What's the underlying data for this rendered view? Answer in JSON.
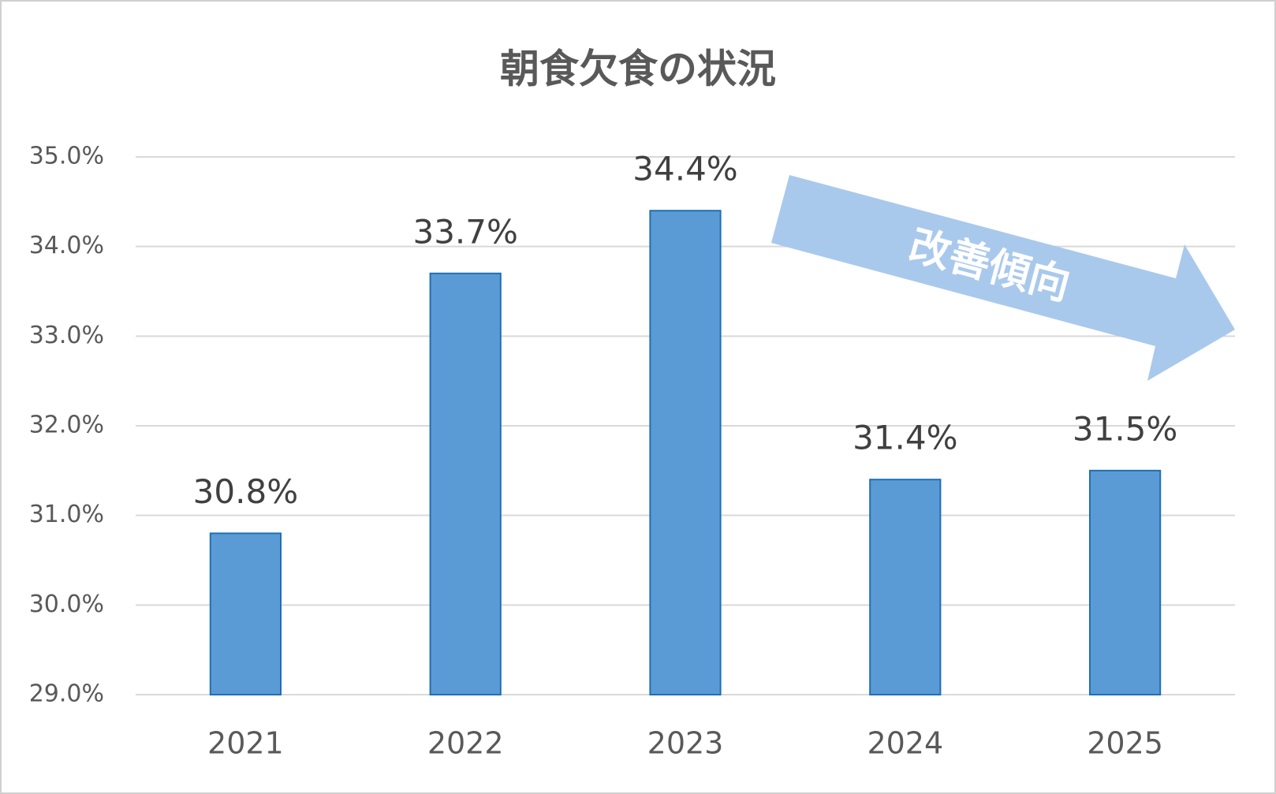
{
  "chart_data": {
    "type": "bar",
    "title": "朝食欠食の状況",
    "categories": [
      "2021",
      "2022",
      "2023",
      "2024",
      "2025"
    ],
    "values": [
      30.8,
      33.7,
      34.4,
      31.4,
      31.5
    ],
    "value_labels": [
      "30.8%",
      "33.7%",
      "34.4%",
      "31.4%",
      "31.5%"
    ],
    "color": "#5b9bd5",
    "ylim": [
      29,
      35
    ],
    "yticks": [
      {
        "value": 29,
        "label": "29.0%"
      },
      {
        "value": 30,
        "label": "30.0%"
      },
      {
        "value": 31,
        "label": "31.0%"
      },
      {
        "value": 32,
        "label": "32.0%"
      },
      {
        "value": 33,
        "label": "33.0%"
      },
      {
        "value": 34,
        "label": "34.0%"
      },
      {
        "value": 35,
        "label": "35.0%"
      }
    ],
    "grid": true,
    "annotation": "改善傾向"
  }
}
